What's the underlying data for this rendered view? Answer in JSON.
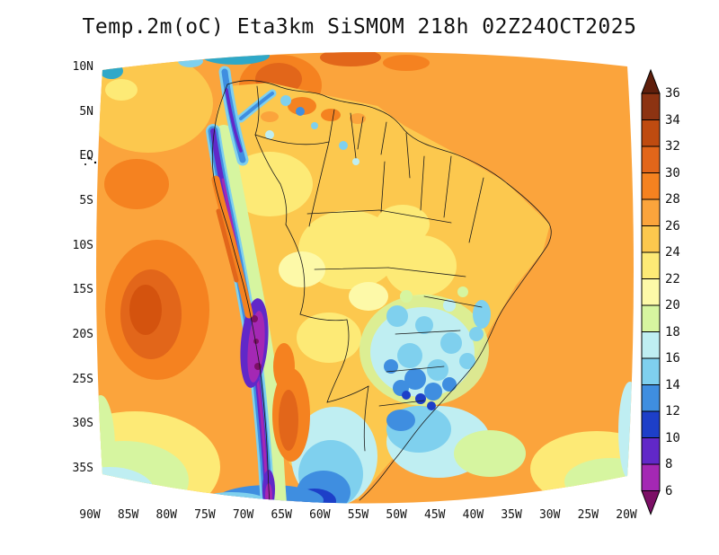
{
  "title": "Temp.2m(oC) Eta3km SiSMOM 218h 02Z24OCT2025",
  "axes": {
    "lat_labels": [
      "10N",
      "5N",
      "EQ",
      "5S",
      "10S",
      "15S",
      "20S",
      "25S",
      "30S",
      "35S"
    ],
    "lon_labels": [
      "90W",
      "85W",
      "80W",
      "75W",
      "70W",
      "65W",
      "60W",
      "55W",
      "50W",
      "45W",
      "40W",
      "35W",
      "30W",
      "25W",
      "20W"
    ]
  },
  "colorbar": {
    "levels": [
      "36",
      "34",
      "32",
      "30",
      "28",
      "26",
      "24",
      "22",
      "20",
      "18",
      "16",
      "14",
      "12",
      "10",
      "8",
      "6"
    ],
    "colors_top_to_bottom": [
      "#5f1f0c",
      "#8c3312",
      "#bf4b10",
      "#e2661a",
      "#f58220",
      "#fba43c",
      "#fcc84e",
      "#fdea76",
      "#fdf9a8",
      "#d6f5a0",
      "#bfeef2",
      "#7fd0ee",
      "#3f8ee0",
      "#1d3fc8",
      "#6128c8",
      "#a428b4",
      "#7c0f66"
    ]
  }
}
